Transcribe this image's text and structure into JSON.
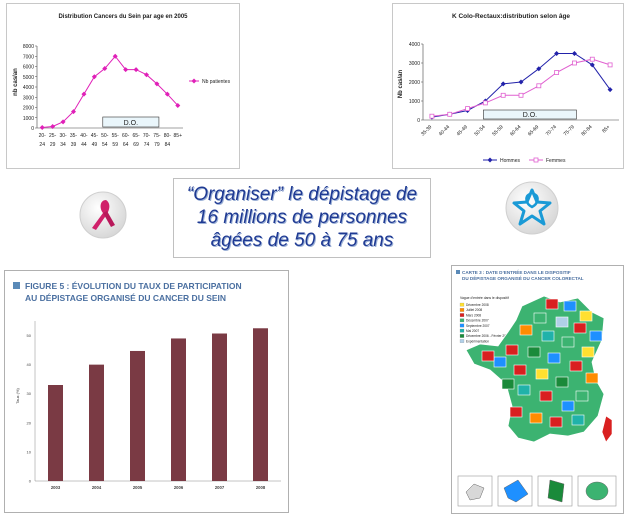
{
  "headline": {
    "line1": "“Organiser” le dépistage de",
    "line2": "16 millions de personnes",
    "line3": "âgées de 50 à 75 ans"
  },
  "chart_data": [
    {
      "type": "line",
      "title": "Distribution Cancers du Sein par age en 2005",
      "ylabel": "nb cas/an",
      "categories": [
        [
          "20-",
          "24"
        ],
        [
          "25-",
          "29"
        ],
        [
          "30-",
          "34"
        ],
        [
          "35-",
          "39"
        ],
        [
          "40-",
          "44"
        ],
        [
          "45-",
          "49"
        ],
        [
          "50-",
          "54"
        ],
        [
          "55-",
          "59"
        ],
        [
          "60-",
          "64"
        ],
        [
          "65-",
          "69"
        ],
        [
          "70-",
          "74"
        ],
        [
          "75-",
          "79"
        ],
        [
          "80-",
          "84"
        ],
        [
          "85+",
          ""
        ]
      ],
      "yticks": [
        0,
        1000,
        2000,
        3000,
        4000,
        5000,
        6000,
        7000,
        8000
      ],
      "ylim": [
        0,
        8000
      ],
      "series": [
        {
          "name": "Nb patientes",
          "color": "#e020b8",
          "values": [
            50,
            150,
            600,
            1600,
            3300,
            5000,
            5800,
            7000,
            5700,
            5700,
            5200,
            4300,
            3300,
            2200
          ]
        }
      ],
      "annotation": "D.O.",
      "annotation_range": [
        6,
        11
      ],
      "legend_position": "right"
    },
    {
      "type": "line",
      "title": "K Colo-Rectaux:distribution selon âge",
      "ylabel": "Nb cas/an",
      "categories": [
        "35-39",
        "40-44",
        "45-49",
        "50-54",
        "55-59",
        "60-64",
        "65-69",
        "70-74",
        "75-79",
        "80-84",
        "85+"
      ],
      "yticks": [
        0,
        1000,
        2000,
        3000,
        4000
      ],
      "ylim": [
        0,
        4000
      ],
      "series": [
        {
          "name": "Hommes",
          "color": "#2222aa",
          "values": [
            150,
            300,
            500,
            1000,
            1900,
            2000,
            2700,
            3500,
            3500,
            2900,
            1600
          ]
        },
        {
          "name": "Femmes",
          "color": "#e060d0",
          "values": [
            200,
            300,
            600,
            900,
            1300,
            1300,
            1800,
            2500,
            3000,
            3200,
            2900
          ]
        }
      ],
      "annotation": "D.O.",
      "annotation_range": [
        3,
        8
      ],
      "legend_position": "bottom"
    },
    {
      "type": "bar",
      "title": "FIGURE 5 : ÉVOLUTION DU TAUX DE PARTICIPATION AU DÉPISTAGE ORGANISÉ DU CANCER DU SEIN",
      "ylabel": "Taux (%)",
      "categories": [
        "2003",
        "2004",
        "2005",
        "2006",
        "2007",
        "2008"
      ],
      "values": [
        33,
        40,
        44.7,
        49,
        50.7,
        52.5
      ],
      "yticks": [
        0,
        10,
        20,
        30,
        40,
        50
      ],
      "ylim": [
        0,
        55
      ],
      "color": "#7a3a44"
    }
  ],
  "map": {
    "title": "CARTE 3 : DATE D’ENTRÉE DANS LE DISPOSITIF DU DÉPISTAGE ORGANISÉ DU CANCER COLORECTAL",
    "legend_title": "Vague d’entrée dans le dispositif",
    "legend": [
      {
        "label": "Décembre 2008",
        "color": "#ffe030"
      },
      {
        "label": "Juillet 2008",
        "color": "#ff8c00"
      },
      {
        "label": "Mars 2008",
        "color": "#d92020"
      },
      {
        "label": "Décembre 2007",
        "color": "#3cb371"
      },
      {
        "label": "Septembre 2007",
        "color": "#1e90ff"
      },
      {
        "label": "Mai 2007",
        "color": "#20b2aa"
      },
      {
        "label": "Décembre 2006 - Février 2007",
        "color": "#1a8a3a"
      },
      {
        "label": "Expérimentation",
        "color": "#b0d0e8"
      }
    ]
  }
}
